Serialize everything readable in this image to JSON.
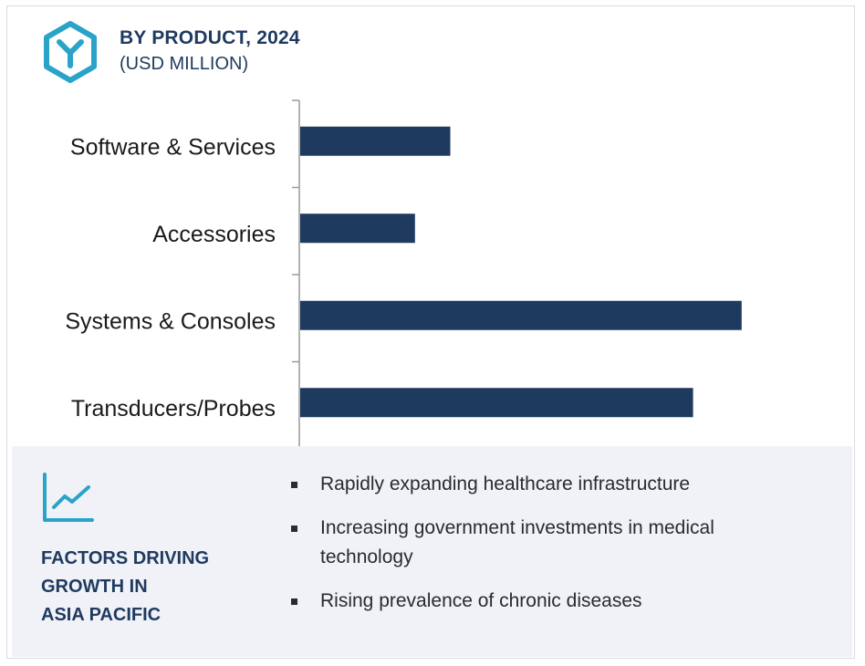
{
  "header": {
    "title": "BY PRODUCT, 2024",
    "subtitle": "(USD MILLION)",
    "icon": "hexagon-y-logo-icon"
  },
  "chart_data": {
    "type": "bar",
    "orientation": "horizontal",
    "categories": [
      "Software & Services",
      "Accessories",
      "Systems & Consoles",
      "Transducers/Probes"
    ],
    "values": [
      34,
      26,
      100,
      89
    ],
    "value_units": "relative (no value axis printed)",
    "bar_color": "#1f3a5f",
    "xlim": [
      0,
      105
    ]
  },
  "factors": {
    "icon": "trend-line-chart-icon",
    "title_lines": [
      "FACTORS DRIVING",
      "GROWTH IN",
      "ASIA PACIFIC"
    ],
    "bullets": [
      "Rapidly expanding healthcare infrastructure",
      "Increasing government investments in medical technology",
      "Rising prevalence of chronic diseases"
    ]
  },
  "colors": {
    "accent": "#2aa3c9",
    "title": "#1f3a5f",
    "bar": "#1f3a5f",
    "panel": "#f0f2f8"
  }
}
